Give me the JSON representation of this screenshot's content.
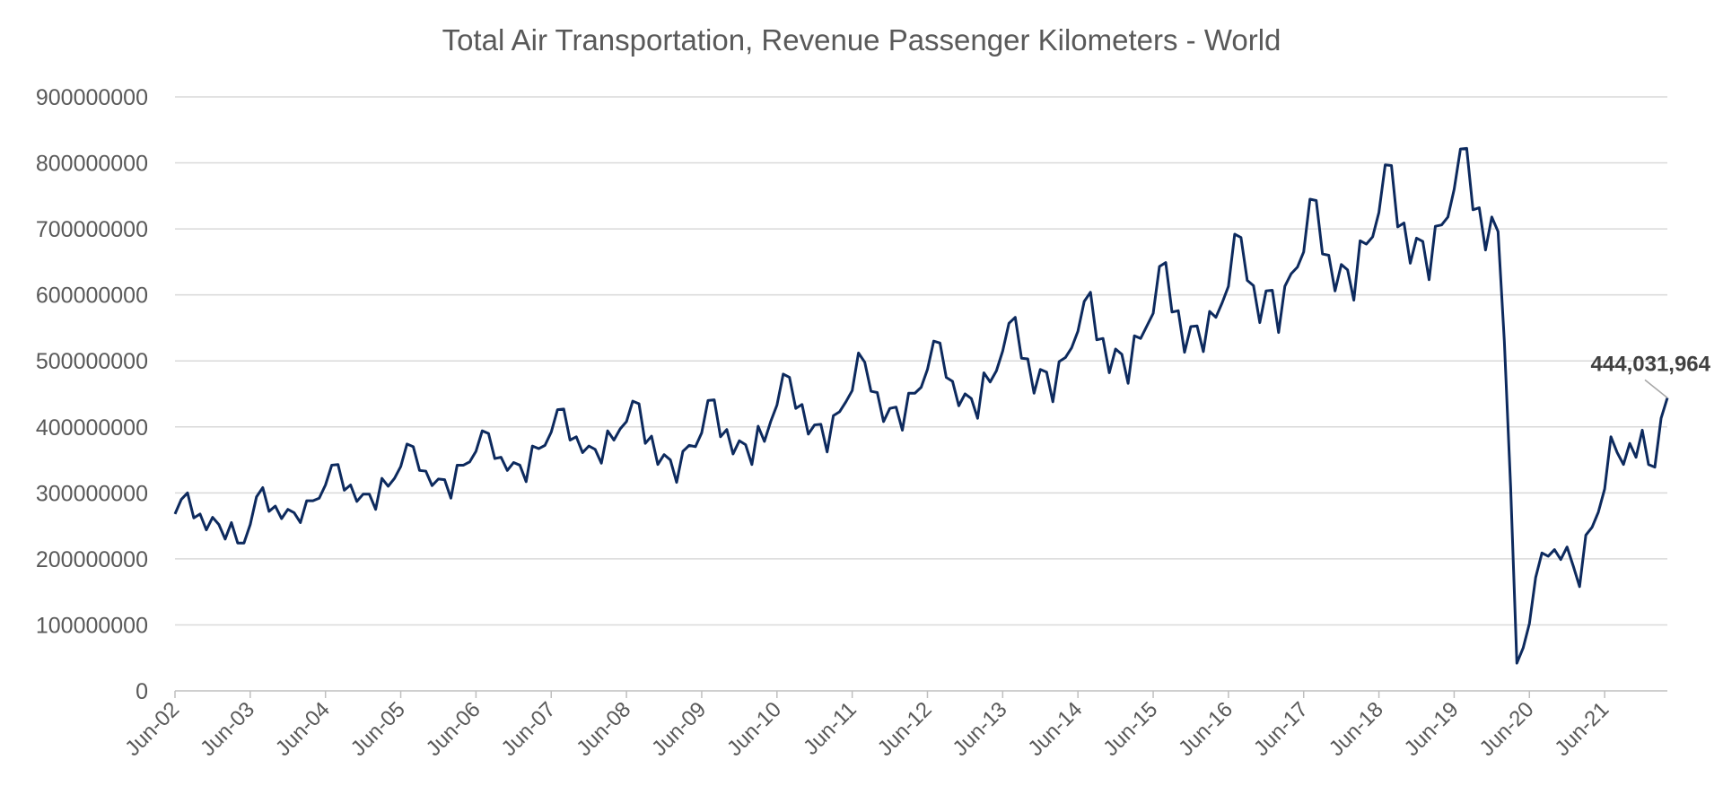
{
  "chart_data": {
    "type": "line",
    "title": "Total Air Transportation, Revenue Passenger Kilometers - World",
    "xlabel": "",
    "ylabel": "",
    "ylim": [
      0,
      900000000
    ],
    "y_ticks": [
      0,
      100000000,
      200000000,
      300000000,
      400000000,
      500000000,
      600000000,
      700000000,
      800000000,
      900000000
    ],
    "y_tick_labels": [
      "0",
      "100000000",
      "200000000",
      "300000000",
      "400000000",
      "500000000",
      "600000000",
      "700000000",
      "800000000",
      "900000000"
    ],
    "x_tick_labels": [
      "Jun-02",
      "Jun-03",
      "Jun-04",
      "Jun-05",
      "Jun-06",
      "Jun-07",
      "Jun-08",
      "Jun-09",
      "Jun-10",
      "Jun-11",
      "Jun-12",
      "Jun-13",
      "Jun-14",
      "Jun-15",
      "Jun-16",
      "Jun-17",
      "Jun-18",
      "Jun-19",
      "Jun-20",
      "Jun-21"
    ],
    "grid": true,
    "legend": "none",
    "line_color": "#0d2a5e",
    "grid_color": "#d9d9d9",
    "annotation": {
      "text": "444,031,964",
      "value": 444031964
    },
    "series": [
      {
        "x_start": "Jun-02",
        "x_end": "Nov-21",
        "frequency": "monthly",
        "values": [
          268000000,
          290000000,
          300000000,
          262000000,
          268000000,
          244000000,
          263000000,
          252000000,
          230000000,
          255000000,
          224000000,
          224000000,
          252000000,
          294000000,
          308000000,
          272000000,
          280000000,
          261000000,
          275000000,
          270000000,
          255000000,
          288000000,
          288000000,
          292000000,
          312000000,
          342000000,
          343000000,
          304000000,
          312000000,
          287000000,
          298000000,
          298000000,
          275000000,
          322000000,
          310000000,
          322000000,
          340000000,
          374000000,
          370000000,
          334000000,
          333000000,
          311000000,
          321000000,
          320000000,
          292000000,
          342000000,
          342000000,
          347000000,
          363000000,
          394000000,
          390000000,
          352000000,
          354000000,
          334000000,
          346000000,
          342000000,
          317000000,
          371000000,
          367000000,
          372000000,
          392000000,
          426000000,
          427000000,
          380000000,
          385000000,
          361000000,
          371000000,
          366000000,
          345000000,
          394000000,
          380000000,
          397000000,
          408000000,
          439000000,
          435000000,
          375000000,
          386000000,
          343000000,
          358000000,
          350000000,
          316000000,
          363000000,
          372000000,
          370000000,
          391000000,
          440000000,
          441000000,
          385000000,
          396000000,
          359000000,
          379000000,
          373000000,
          343000000,
          401000000,
          378000000,
          408000000,
          433000000,
          480000000,
          475000000,
          428000000,
          434000000,
          389000000,
          403000000,
          404000000,
          362000000,
          417000000,
          423000000,
          438000000,
          455000000,
          512000000,
          498000000,
          454000000,
          452000000,
          408000000,
          428000000,
          430000000,
          395000000,
          451000000,
          451000000,
          460000000,
          487000000,
          530000000,
          527000000,
          475000000,
          469000000,
          432000000,
          450000000,
          443000000,
          413000000,
          482000000,
          468000000,
          485000000,
          515000000,
          557000000,
          566000000,
          504000000,
          503000000,
          451000000,
          487000000,
          483000000,
          438000000,
          499000000,
          505000000,
          520000000,
          545000000,
          590000000,
          604000000,
          532000000,
          534000000,
          482000000,
          518000000,
          510000000,
          466000000,
          538000000,
          534000000,
          553000000,
          572000000,
          643000000,
          649000000,
          574000000,
          576000000,
          513000000,
          552000000,
          553000000,
          514000000,
          575000000,
          566000000,
          588000000,
          613000000,
          692000000,
          687000000,
          622000000,
          614000000,
          558000000,
          606000000,
          607000000,
          543000000,
          613000000,
          632000000,
          642000000,
          665000000,
          745000000,
          743000000,
          662000000,
          660000000,
          606000000,
          646000000,
          638000000,
          592000000,
          682000000,
          677000000,
          688000000,
          725000000,
          797000000,
          796000000,
          703000000,
          709000000,
          648000000,
          686000000,
          681000000,
          623000000,
          704000000,
          706000000,
          718000000,
          760000000,
          821000000,
          822000000,
          729000000,
          732000000,
          668000000,
          718000000,
          696000000,
          530000000,
          310000000,
          42000000,
          65000000,
          102000000,
          172000000,
          209000000,
          204000000,
          214000000,
          199000000,
          218000000,
          189000000,
          158000000,
          236000000,
          248000000,
          271000000,
          306000000,
          385000000,
          361000000,
          343000000,
          375000000,
          354000000,
          395000000,
          343000000,
          339000000,
          413000000,
          444031964
        ]
      }
    ]
  }
}
